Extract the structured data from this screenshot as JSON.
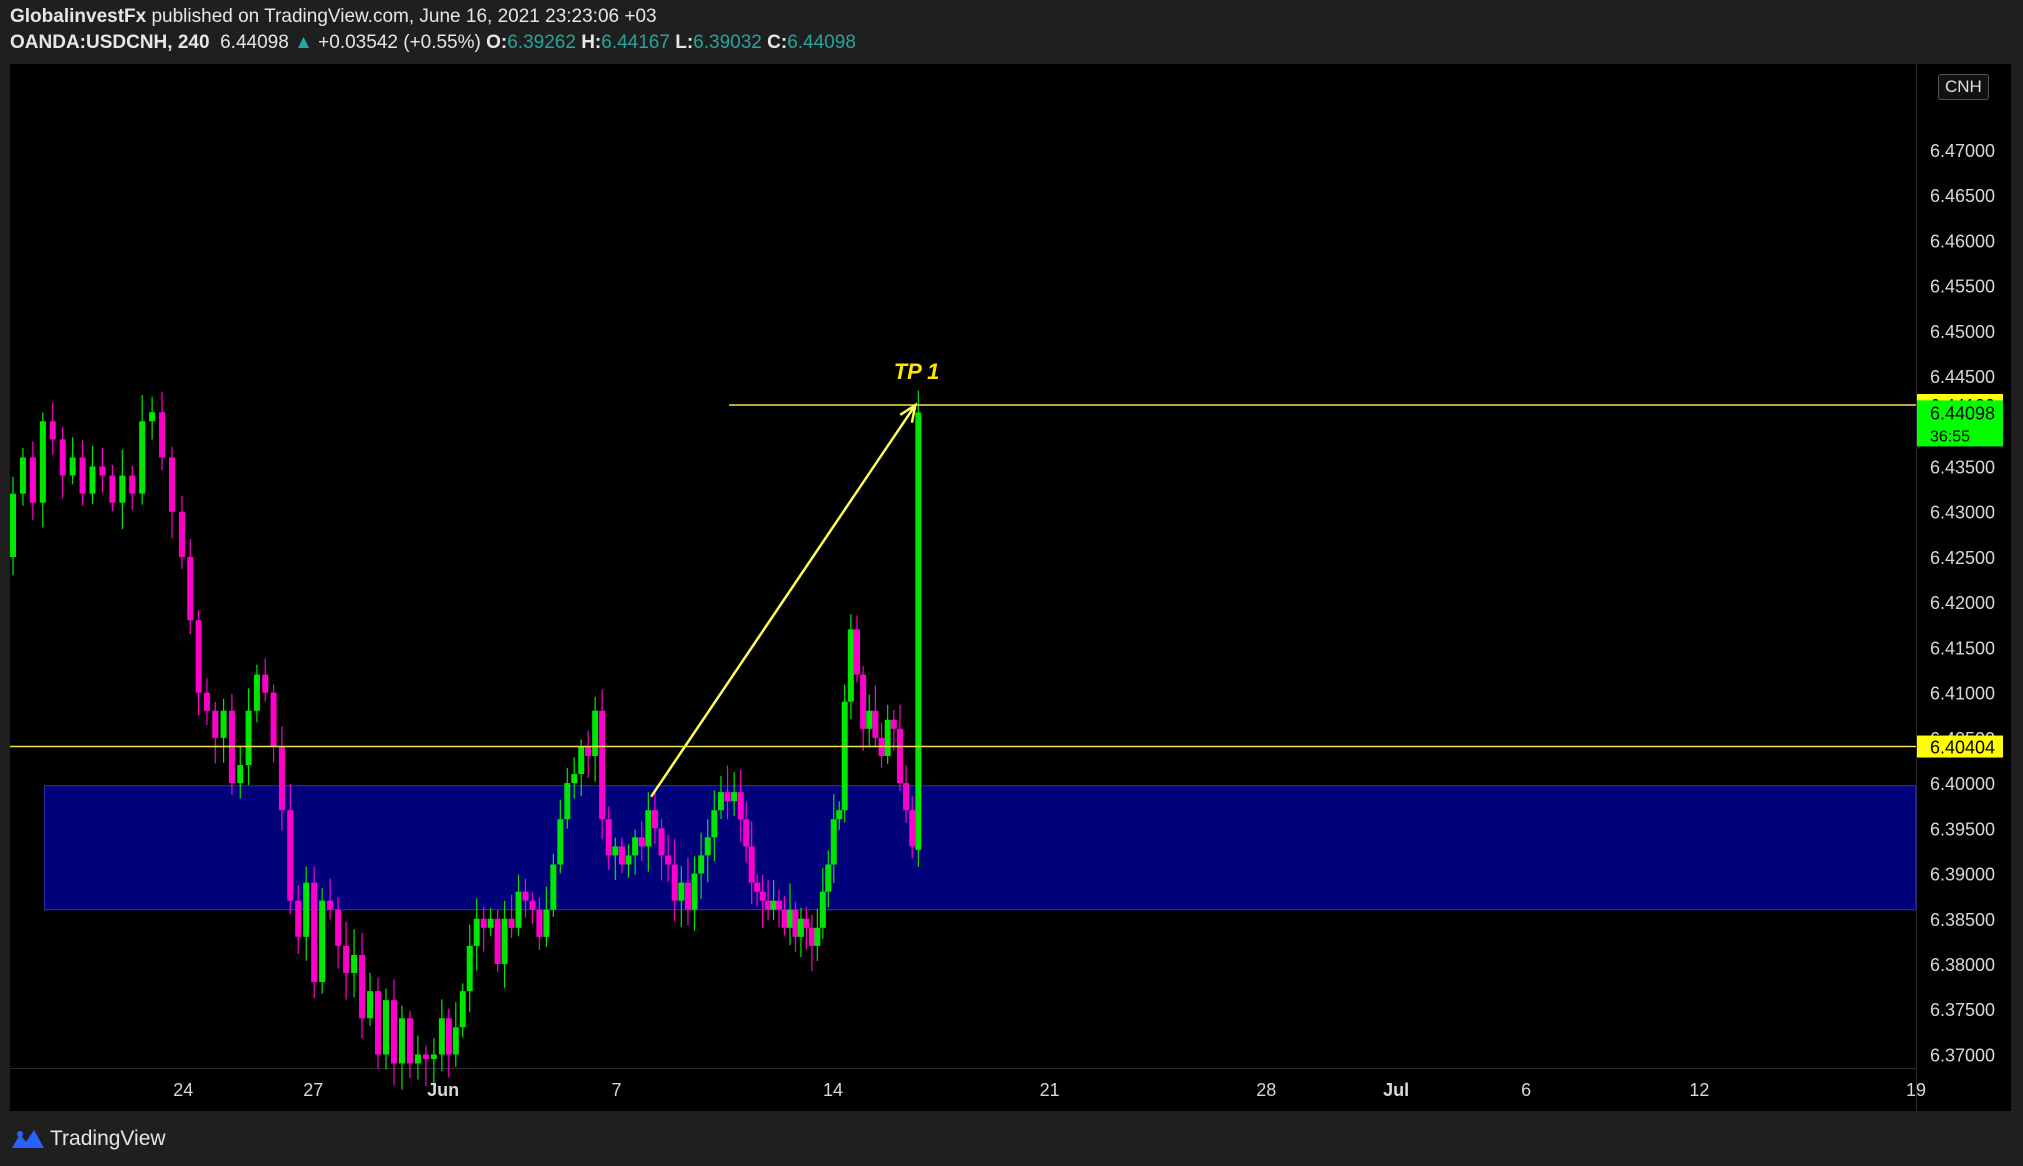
{
  "header": {
    "publisher": "GlobalinvestFx",
    "published_text": "published on TradingView.com, June 16, 2021 23:23:06 +03",
    "symbol": "OANDA:USDCNH, 240",
    "last": "6.44098",
    "change": "+0.03542 (+0.55%)",
    "o_label": "O:",
    "o_value": "6.39262",
    "h_label": "H:",
    "h_value": "6.44167",
    "l_label": "L:",
    "l_value": "6.39032",
    "c_label": "C:",
    "c_value": "6.44098"
  },
  "currency_badge": "CNH",
  "footer": {
    "brand": "TradingView"
  },
  "colors": {
    "up": "#00e600",
    "down": "#ff00cc",
    "zone": "#00007a",
    "level": "#f5e14b",
    "label_bg": "#ffff00",
    "current_bg": "#00ff00"
  },
  "chart_data": {
    "type": "candlestick",
    "symbol": "OANDA:USDCNH",
    "timeframe": "240",
    "ylim": [
      6.3685,
      6.4795
    ],
    "price_ticks": [
      "6.37000",
      "6.37500",
      "6.38000",
      "6.38500",
      "6.39000",
      "6.39500",
      "6.40000",
      "6.40500",
      "6.41000",
      "6.41500",
      "6.42000",
      "6.42500",
      "6.43000",
      "6.43500",
      "6.44000",
      "6.44500",
      "6.45000",
      "6.45500",
      "6.46000",
      "6.46500",
      "6.47000"
    ],
    "time_ticks": [
      {
        "label": "24",
        "pos": 24.0
      },
      {
        "label": "27",
        "pos": 27.0
      },
      {
        "label": "Jun",
        "pos": 30.0
      },
      {
        "label": "7",
        "pos": 34.0
      },
      {
        "label": "14",
        "pos": 39.0
      },
      {
        "label": "21",
        "pos": 44.0
      },
      {
        "label": "28",
        "pos": 49.0
      },
      {
        "label": "Jul",
        "pos": 52.0
      },
      {
        "label": "6",
        "pos": 55.0
      },
      {
        "label": "12",
        "pos": 59.0
      },
      {
        "label": "19",
        "pos": 64.0
      }
    ],
    "x_range": [
      20.0,
      64.0
    ],
    "levels": [
      {
        "price": 6.4418,
        "label": "6.44180"
      },
      {
        "price": 6.40404,
        "label": "6.40404"
      }
    ],
    "current_price": {
      "price": 6.44098,
      "label": "6.44098",
      "countdown": "36:55"
    },
    "demand_zone": {
      "from": 6.386,
      "to": 6.3997,
      "x_start": 20.8,
      "x_end": 64.0
    },
    "tp_label": "TP 1",
    "tp_line_start": 36.6,
    "arrow": {
      "from": [
        34.8,
        6.3985
      ],
      "to": [
        40.9,
        6.4418
      ]
    },
    "segments": [
      {
        "x0": 20.0,
        "x1": 23.9,
        "prices": [
          6.425,
          6.432,
          6.436,
          6.431,
          6.44,
          6.438,
          6.434,
          6.436,
          6.432,
          6.435,
          6.434,
          6.431,
          6.434,
          6.432,
          6.44,
          6.441,
          6.436,
          6.43
        ]
      },
      {
        "x0": 23.9,
        "x1": 26.4,
        "prices": [
          6.43,
          6.425,
          6.418,
          6.41,
          6.408,
          6.405,
          6.408,
          6.4,
          6.402,
          6.408,
          6.412,
          6.41,
          6.404,
          6.397
        ]
      },
      {
        "x0": 26.4,
        "x1": 29.9,
        "prices": [
          6.397,
          6.387,
          6.383,
          6.389,
          6.378,
          6.387,
          6.386,
          6.382,
          6.379,
          6.381,
          6.374,
          6.377,
          6.37,
          6.376,
          6.369,
          6.374,
          6.369,
          6.37,
          6.3695,
          6.37
        ]
      },
      {
        "x0": 29.9,
        "x1": 33.6,
        "prices": [
          6.37,
          6.374,
          6.37,
          6.373,
          6.377,
          6.382,
          6.385,
          6.384,
          6.385,
          6.38,
          6.385,
          6.384,
          6.388,
          6.387,
          6.386,
          6.383,
          6.386,
          6.391,
          6.396,
          6.4,
          6.401,
          6.404,
          6.403,
          6.408
        ]
      },
      {
        "x0": 33.6,
        "x1": 36.8,
        "prices": [
          6.408,
          6.396,
          6.392,
          6.393,
          6.391,
          6.392,
          6.394,
          6.393,
          6.397,
          6.395,
          6.392,
          6.391,
          6.387,
          6.389,
          6.386,
          6.39,
          6.392,
          6.394,
          6.397,
          6.399,
          6.398,
          6.399
        ]
      },
      {
        "x0": 36.8,
        "x1": 39.2,
        "prices": [
          6.399,
          6.396,
          6.393,
          6.389,
          6.388,
          6.387,
          6.386,
          6.387,
          6.386,
          6.384,
          6.386,
          6.383,
          6.385,
          6.384,
          6.382,
          6.384,
          6.388,
          6.391,
          6.396,
          6.397
        ]
      },
      {
        "x0": 39.2,
        "x1": 40.9,
        "prices": [
          6.397,
          6.409,
          6.417,
          6.412,
          6.406,
          6.408,
          6.405,
          6.403,
          6.407,
          6.406,
          6.4,
          6.397,
          6.393
        ]
      },
      {
        "x0": 40.9,
        "x1": 41.0,
        "prices": [
          6.39262,
          6.44098
        ]
      }
    ]
  }
}
